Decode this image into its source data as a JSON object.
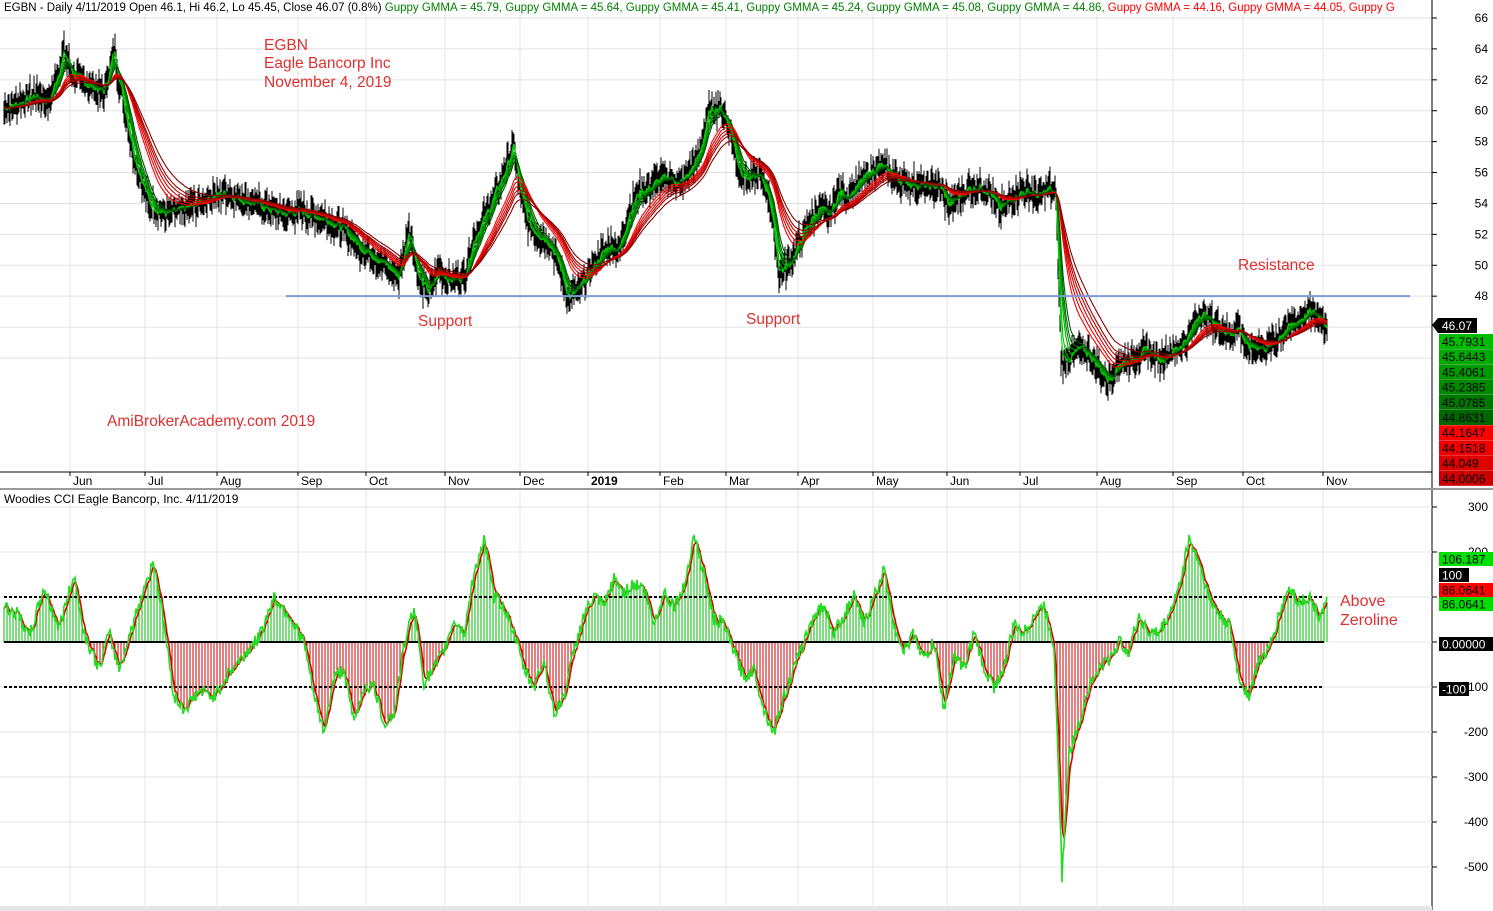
{
  "chart_data": [
    {
      "type": "candlestick",
      "header_segments": [
        {
          "text": "EGBN - Daily 4/11/2019 Open 46.1, Hi 46.2, Lo 45.45, Close 46.07 (0.8%)",
          "color": "#000000"
        },
        {
          "text": "Guppy GMMA = 45.79,",
          "color": "#008000"
        },
        {
          "text": "Guppy GMMA = 45.64,",
          "color": "#008000"
        },
        {
          "text": "Guppy GMMA = 45.41,",
          "color": "#008000"
        },
        {
          "text": "Guppy GMMA = 45.24,",
          "color": "#008000"
        },
        {
          "text": "Guppy GMMA = 45.08,",
          "color": "#008000"
        },
        {
          "text": "Guppy GMMA = 44.86,",
          "color": "#008000"
        },
        {
          "text": "Guppy GMMA = 44.16,",
          "color": "#ff0000"
        },
        {
          "text": "Guppy GMMA = 44.05,",
          "color": "#ff0000"
        },
        {
          "text": "Guppy G",
          "color": "#ff0000"
        }
      ],
      "title_lines": [
        "EGBN",
        "Eagle Bancorp Inc",
        "November 4, 2019"
      ],
      "watermark": "AmiBrokerAcademy.com  2019",
      "annotations": [
        {
          "text": "Support",
          "x": "Oct 2018",
          "y": 46.9
        },
        {
          "text": "Support",
          "x": "Mar 2019",
          "y": 47.0
        },
        {
          "text": "Resistance",
          "x": "Oct 2019",
          "y": 49.9
        }
      ],
      "horizontal_line": {
        "value": 48.0,
        "color": "#7c9bd8",
        "from": "Sep 2018",
        "to": "Nov 2019"
      },
      "x_tick_labels": [
        "Jun",
        "Jul",
        "Aug",
        "Sep",
        "Oct",
        "Nov",
        "Dec",
        "2019",
        "Feb",
        "Mar",
        "Apr",
        "May",
        "Jun",
        "Jul",
        "Aug",
        "Sep",
        "Oct",
        "Nov"
      ],
      "y_ticks": [
        44,
        46,
        48,
        50,
        52,
        54,
        56,
        58,
        60,
        62,
        64,
        66
      ],
      "y_tick_labels": [
        "48",
        "50",
        "52",
        "54",
        "56",
        "58",
        "60",
        "62",
        "64",
        "66"
      ],
      "ylim": [
        41.0,
        67.0
      ],
      "close_anchors": [
        [
          0,
          60.2
        ],
        [
          15,
          60.5
        ],
        [
          30,
          61.0
        ],
        [
          45,
          60.6
        ],
        [
          60,
          63.8
        ],
        [
          70,
          62.2
        ],
        [
          85,
          61.6
        ],
        [
          100,
          61.2
        ],
        [
          110,
          64.0
        ],
        [
          115,
          62.0
        ],
        [
          130,
          57.0
        ],
        [
          145,
          54.0
        ],
        [
          160,
          53.3
        ],
        [
          175,
          53.5
        ],
        [
          190,
          53.9
        ],
        [
          205,
          54.4
        ],
        [
          220,
          54.7
        ],
        [
          235,
          54.3
        ],
        [
          250,
          54.0
        ],
        [
          265,
          53.6
        ],
        [
          280,
          53.3
        ],
        [
          295,
          53.5
        ],
        [
          310,
          53.2
        ],
        [
          325,
          52.9
        ],
        [
          340,
          52.3
        ],
        [
          355,
          51.2
        ],
        [
          370,
          50.6
        ],
        [
          385,
          49.8
        ],
        [
          395,
          49.2
        ],
        [
          405,
          52.5
        ],
        [
          415,
          49.0
        ],
        [
          425,
          48.2
        ],
        [
          435,
          49.8
        ],
        [
          445,
          49.0
        ],
        [
          460,
          49.3
        ],
        [
          470,
          51.8
        ],
        [
          480,
          53.0
        ],
        [
          490,
          54.5
        ],
        [
          500,
          56.0
        ],
        [
          510,
          57.8
        ],
        [
          515,
          55.0
        ],
        [
          525,
          52.5
        ],
        [
          535,
          52.0
        ],
        [
          545,
          51.5
        ],
        [
          555,
          50.0
        ],
        [
          565,
          47.8
        ],
        [
          575,
          48.5
        ],
        [
          585,
          49.5
        ],
        [
          595,
          50.5
        ],
        [
          605,
          51.3
        ],
        [
          615,
          51.0
        ],
        [
          625,
          53.5
        ],
        [
          635,
          54.8
        ],
        [
          645,
          55.0
        ],
        [
          655,
          55.5
        ],
        [
          665,
          55.7
        ],
        [
          675,
          55.2
        ],
        [
          685,
          56.0
        ],
        [
          695,
          57.2
        ],
        [
          705,
          60.0
        ],
        [
          715,
          60.3
        ],
        [
          725,
          59.0
        ],
        [
          735,
          56.2
        ],
        [
          745,
          55.5
        ],
        [
          755,
          55.8
        ],
        [
          765,
          54.5
        ],
        [
          775,
          49.5
        ],
        [
          785,
          50.0
        ],
        [
          795,
          51.5
        ],
        [
          805,
          52.8
        ],
        [
          815,
          53.7
        ],
        [
          825,
          53.2
        ],
        [
          835,
          54.8
        ],
        [
          845,
          54.5
        ],
        [
          855,
          55.3
        ],
        [
          865,
          56.0
        ],
        [
          875,
          56.5
        ],
        [
          885,
          56.0
        ],
        [
          895,
          55.5
        ],
        [
          905,
          55.3
        ],
        [
          915,
          55.2
        ],
        [
          925,
          55.0
        ],
        [
          935,
          55.2
        ],
        [
          945,
          53.8
        ],
        [
          955,
          54.5
        ],
        [
          965,
          55.0
        ],
        [
          975,
          55.1
        ],
        [
          985,
          54.8
        ],
        [
          995,
          53.5
        ],
        [
          1005,
          54.2
        ],
        [
          1015,
          54.7
        ],
        [
          1025,
          54.8
        ],
        [
          1035,
          54.4
        ],
        [
          1045,
          55.0
        ],
        [
          1052,
          54.3
        ],
        [
          1057,
          43.8
        ],
        [
          1065,
          44.0
        ],
        [
          1075,
          44.6
        ],
        [
          1085,
          44.2
        ],
        [
          1095,
          43.3
        ],
        [
          1105,
          42.5
        ],
        [
          1115,
          43.8
        ],
        [
          1125,
          43.8
        ],
        [
          1135,
          44.3
        ],
        [
          1145,
          44.5
        ],
        [
          1155,
          43.8
        ],
        [
          1165,
          44.3
        ],
        [
          1175,
          44.8
        ],
        [
          1185,
          45.5
        ],
        [
          1195,
          47.0
        ],
        [
          1205,
          46.5
        ],
        [
          1215,
          46.0
        ],
        [
          1225,
          45.5
        ],
        [
          1235,
          46.0
        ],
        [
          1243,
          44.5
        ],
        [
          1250,
          44.8
        ],
        [
          1260,
          44.6
        ],
        [
          1270,
          45.0
        ],
        [
          1278,
          45.7
        ],
        [
          1285,
          46.0
        ],
        [
          1295,
          46.5
        ],
        [
          1305,
          47.0
        ],
        [
          1315,
          46.7
        ],
        [
          1323,
          46.07
        ]
      ],
      "gmma_colors": [
        "#00dd00",
        "#00c000",
        "#00a800",
        "#008c00",
        "#007000",
        "#005800",
        "#ff0000",
        "#e80000",
        "#d00000",
        "#b80000",
        "#a00000",
        "#880000"
      ],
      "gmma_periods": [
        3,
        5,
        8,
        10,
        12,
        15,
        30,
        35,
        40,
        45,
        50,
        60
      ],
      "price_label": {
        "text": "46.07",
        "value": 46.07
      },
      "gmma_labels": [
        {
          "text": "45.7931",
          "color": "#00bb00"
        },
        {
          "text": "45.6443",
          "color": "#00aa00"
        },
        {
          "text": "45.4061",
          "color": "#009900"
        },
        {
          "text": "45.2385",
          "color": "#008800"
        },
        {
          "text": "45.0785",
          "color": "#007700"
        },
        {
          "text": "44.8631",
          "color": "#006600"
        },
        {
          "text": "44.1647",
          "color": "#ff0000"
        },
        {
          "text": "44.1518",
          "color": "#ee0000"
        },
        {
          "text": "44.049",
          "color": "#dd0000"
        },
        {
          "text": "44.0006",
          "color": "#cc0000"
        }
      ]
    },
    {
      "type": "line",
      "title": "Woodies CCI  Eagle Bancorp, Inc. 4/11/2019",
      "y_ticks": [
        300,
        200,
        100,
        0,
        -100,
        -200,
        -300,
        -400,
        -500
      ],
      "y_tick_labels": [
        "300",
        "200",
        "100",
        "0",
        "-100",
        "-200",
        "-300",
        "-400",
        "-500"
      ],
      "ylim": [
        -560,
        320
      ],
      "reference_lines": [
        100,
        0,
        -100
      ],
      "cci_anchors": [
        [
          0,
          80
        ],
        [
          15,
          60
        ],
        [
          25,
          10
        ],
        [
          40,
          120
        ],
        [
          55,
          30
        ],
        [
          70,
          150
        ],
        [
          80,
          20
        ],
        [
          95,
          -60
        ],
        [
          105,
          20
        ],
        [
          115,
          -60
        ],
        [
          125,
          10
        ],
        [
          140,
          120
        ],
        [
          150,
          180
        ],
        [
          160,
          40
        ],
        [
          170,
          -120
        ],
        [
          180,
          -150
        ],
        [
          195,
          -110
        ],
        [
          210,
          -120
        ],
        [
          225,
          -70
        ],
        [
          240,
          -30
        ],
        [
          255,
          10
        ],
        [
          270,
          100
        ],
        [
          285,
          60
        ],
        [
          300,
          0
        ],
        [
          310,
          -120
        ],
        [
          320,
          -200
        ],
        [
          330,
          -80
        ],
        [
          340,
          -60
        ],
        [
          350,
          -180
        ],
        [
          360,
          -100
        ],
        [
          370,
          -100
        ],
        [
          380,
          -180
        ],
        [
          390,
          -160
        ],
        [
          400,
          -10
        ],
        [
          410,
          80
        ],
        [
          420,
          -90
        ],
        [
          430,
          -60
        ],
        [
          440,
          -20
        ],
        [
          450,
          50
        ],
        [
          460,
          20
        ],
        [
          470,
          150
        ],
        [
          480,
          230
        ],
        [
          490,
          100
        ],
        [
          500,
          80
        ],
        [
          510,
          20
        ],
        [
          520,
          -60
        ],
        [
          530,
          -100
        ],
        [
          540,
          -40
        ],
        [
          550,
          -160
        ],
        [
          560,
          -120
        ],
        [
          570,
          -20
        ],
        [
          580,
          60
        ],
        [
          590,
          100
        ],
        [
          600,
          80
        ],
        [
          610,
          140
        ],
        [
          620,
          110
        ],
        [
          630,
          130
        ],
        [
          640,
          120
        ],
        [
          650,
          40
        ],
        [
          660,
          110
        ],
        [
          670,
          80
        ],
        [
          680,
          120
        ],
        [
          690,
          240
        ],
        [
          700,
          150
        ],
        [
          710,
          50
        ],
        [
          720,
          40
        ],
        [
          730,
          -20
        ],
        [
          740,
          -80
        ],
        [
          750,
          -60
        ],
        [
          760,
          -150
        ],
        [
          770,
          -200
        ],
        [
          780,
          -120
        ],
        [
          790,
          -60
        ],
        [
          800,
          0
        ],
        [
          810,
          60
        ],
        [
          820,
          80
        ],
        [
          830,
          20
        ],
        [
          840,
          60
        ],
        [
          850,
          100
        ],
        [
          860,
          40
        ],
        [
          870,
          100
        ],
        [
          880,
          160
        ],
        [
          890,
          40
        ],
        [
          900,
          -20
        ],
        [
          910,
          20
        ],
        [
          920,
          -40
        ],
        [
          930,
          0
        ],
        [
          940,
          -150
        ],
        [
          950,
          -30
        ],
        [
          960,
          -60
        ],
        [
          970,
          20
        ],
        [
          980,
          -60
        ],
        [
          990,
          -100
        ],
        [
          1000,
          -60
        ],
        [
          1010,
          40
        ],
        [
          1020,
          20
        ],
        [
          1030,
          60
        ],
        [
          1040,
          80
        ],
        [
          1050,
          -10
        ],
        [
          1055,
          -300
        ],
        [
          1058,
          -520
        ],
        [
          1065,
          -250
        ],
        [
          1075,
          -180
        ],
        [
          1085,
          -100
        ],
        [
          1095,
          -60
        ],
        [
          1105,
          -40
        ],
        [
          1115,
          0
        ],
        [
          1125,
          -20
        ],
        [
          1135,
          60
        ],
        [
          1145,
          20
        ],
        [
          1155,
          20
        ],
        [
          1165,
          60
        ],
        [
          1175,
          120
        ],
        [
          1185,
          230
        ],
        [
          1195,
          180
        ],
        [
          1205,
          100
        ],
        [
          1215,
          60
        ],
        [
          1225,
          40
        ],
        [
          1235,
          -80
        ],
        [
          1245,
          -120
        ],
        [
          1255,
          -40
        ],
        [
          1265,
          -20
        ],
        [
          1275,
          60
        ],
        [
          1285,
          120
        ],
        [
          1295,
          90
        ],
        [
          1305,
          100
        ],
        [
          1315,
          60
        ],
        [
          1323,
          86
        ]
      ],
      "histogram_series": [
        {
          "name": "positive",
          "color": "#00bb00"
        },
        {
          "name": "negative",
          "color": "#cc0000"
        }
      ],
      "last_value_labels": [
        {
          "text": "106.187",
          "value": 106.187,
          "bg": "#00dd00",
          "fg": "#000000"
        },
        {
          "text": "100",
          "value": 100,
          "bg": "#000000",
          "fg": "#ffffff"
        },
        {
          "text": "86.0641",
          "value": 86.0641,
          "bg": "#ff0000",
          "fg": "#000000"
        },
        {
          "text": "86.0641",
          "value": 86.0641,
          "bg": "#00dd00",
          "fg": "#000000"
        },
        {
          "text": "0.00000",
          "value": 0,
          "bg": "#000000",
          "fg": "#ffffff"
        },
        {
          "text": "-100",
          "value": -100,
          "bg": "#000000",
          "fg": "#ffffff"
        }
      ],
      "annotation_lines": [
        "Above",
        "Zeroline"
      ]
    }
  ]
}
